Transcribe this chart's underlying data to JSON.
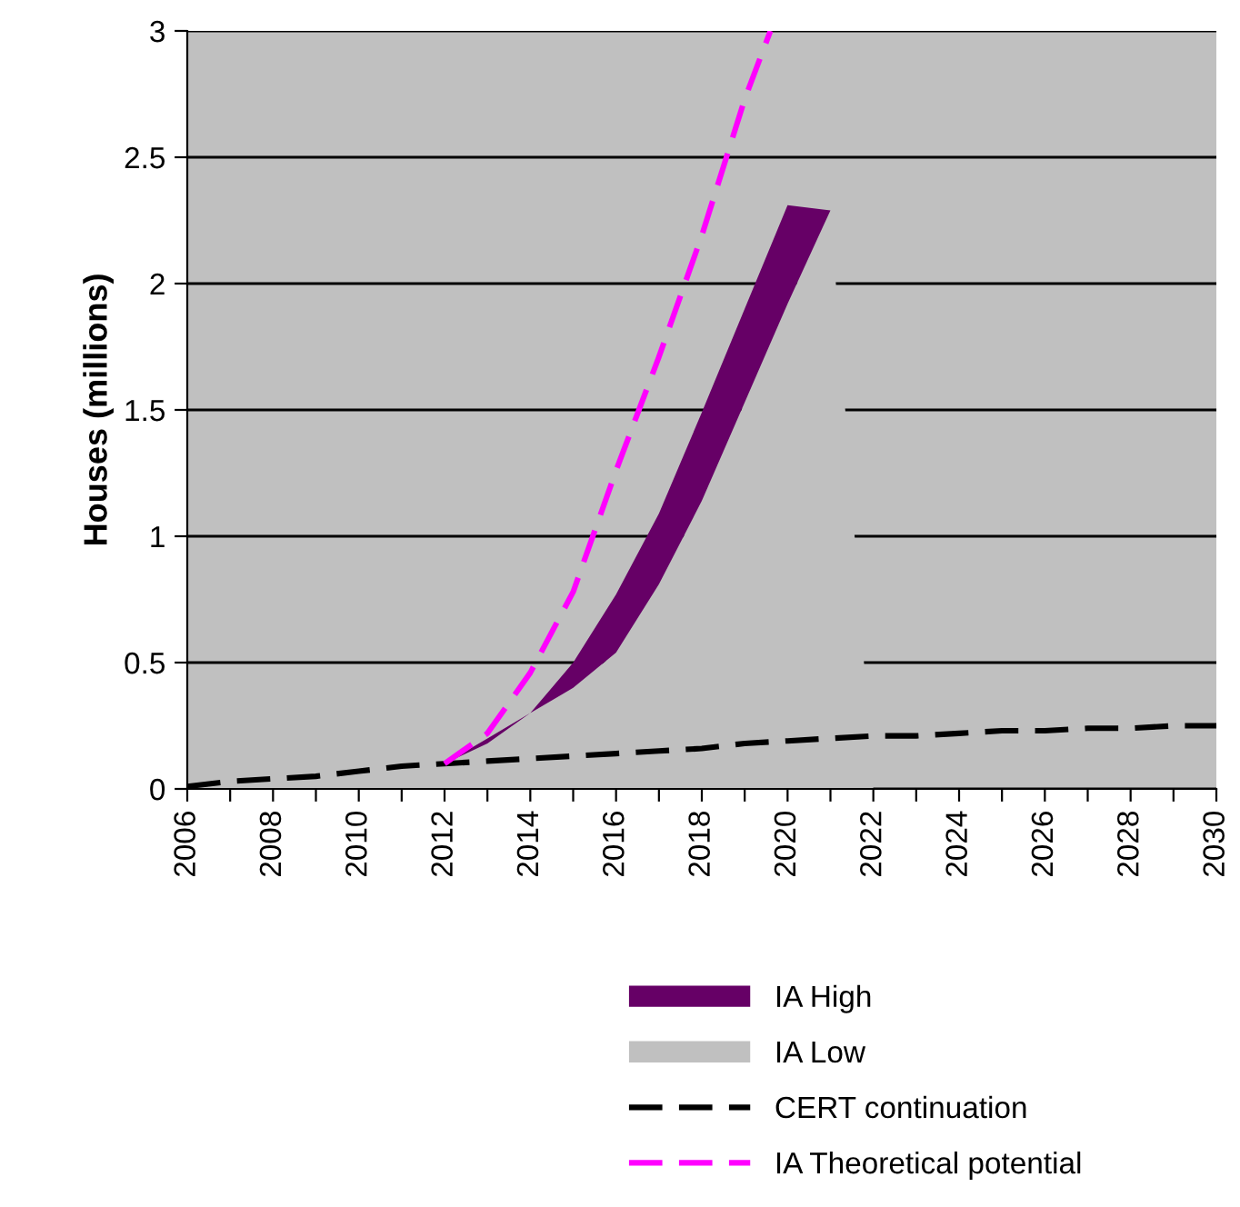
{
  "chart_data": {
    "type": "area",
    "stacked": true,
    "ylabel": "Houses (millions)",
    "x": [
      2006,
      2007,
      2008,
      2009,
      2010,
      2011,
      2012,
      2013,
      2014,
      2015,
      2016,
      2017,
      2018,
      2019,
      2020,
      2021,
      2022,
      2023,
      2024,
      2025,
      2026,
      2027,
      2028,
      2029,
      2030
    ],
    "series": [
      {
        "name": "IA Low",
        "color": "#c0c0c0",
        "values": [
          0.01,
          0.03,
          0.04,
          0.05,
          0.07,
          0.09,
          0.1,
          0.18,
          0.3,
          0.4,
          0.54,
          0.81,
          1.14,
          1.53,
          1.92,
          2.29,
          0,
          null,
          null,
          null,
          null,
          null,
          null,
          null,
          null
        ]
      },
      {
        "name": "IA High",
        "color": "#660066",
        "values": [
          0,
          0,
          0,
          0,
          0,
          0,
          0,
          0.02,
          0,
          0.1,
          0.23,
          0.28,
          0.35,
          0.37,
          0.39,
          0,
          0,
          null,
          null,
          null,
          null,
          null,
          null,
          null,
          null
        ]
      },
      {
        "name": "CERT continuation",
        "type": "line",
        "color": "#000000",
        "line_style": "dashed",
        "values": [
          0.01,
          0.03,
          0.04,
          0.05,
          0.07,
          0.09,
          0.1,
          0.11,
          0.12,
          0.13,
          0.14,
          0.15,
          0.16,
          0.18,
          0.19,
          0.2,
          0.21,
          0.21,
          0.22,
          0.23,
          0.23,
          0.24,
          0.24,
          0.25,
          0.25
        ]
      },
      {
        "name": "IA Theoretical potential",
        "type": "line",
        "color": "#ff00ff",
        "line_style": "dashed",
        "x": [
          2012,
          2013,
          2014,
          2015,
          2016,
          2017,
          2018,
          2019,
          2019.6
        ],
        "values": [
          0.1,
          0.22,
          0.46,
          0.78,
          1.26,
          1.71,
          2.19,
          2.73,
          3.0
        ]
      }
    ],
    "xlim": [
      2006,
      2030
    ],
    "xticks": [
      2006,
      {
        "value": 2007,
        "label": null
      },
      2008,
      {
        "value": 2009,
        "label": null
      },
      2010,
      {
        "value": 2011,
        "label": null
      },
      2012,
      {
        "value": 2013,
        "label": null
      },
      2014,
      {
        "value": 2015,
        "label": null
      },
      2016,
      {
        "value": 2017,
        "label": null
      },
      2018,
      {
        "value": 2019,
        "label": null
      },
      2020,
      {
        "value": 2021,
        "label": null
      },
      2022,
      {
        "value": 2023,
        "label": null
      },
      2024,
      {
        "value": 2025,
        "label": null
      },
      2026,
      {
        "value": 2027,
        "label": null
      },
      2028,
      {
        "value": 2029,
        "label": null
      },
      2030
    ],
    "ylim": [
      0,
      3
    ],
    "yticks": [
      0,
      0.5,
      1,
      1.5,
      2,
      2.5,
      3
    ],
    "grid": "y",
    "legend": "bottom"
  }
}
